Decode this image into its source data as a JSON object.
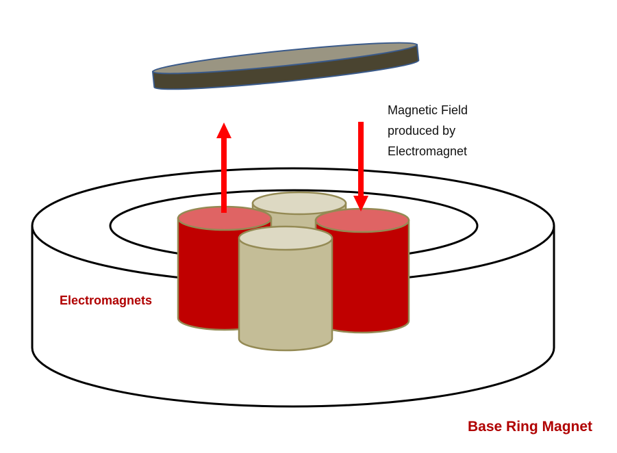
{
  "labels": {
    "field_line1": "Magnetic Field",
    "field_line2": "produced by",
    "field_line3": "Electromagnet",
    "electromagnets": "Electromagnets",
    "base_ring": "Base Ring Magnet"
  },
  "colors": {
    "electromagnet_fill": "#c00000",
    "electromagnet_top": "#df6464",
    "core_fill": "#c4bd97",
    "core_top": "#ddd9c3",
    "core_stroke": "#948a54",
    "arrow": "#ff0000",
    "floating_disc": "#4a4430",
    "floating_disc_top": "#9a9582",
    "floating_disc_stroke": "#3a5a8a",
    "label_red": "#b00000"
  }
}
